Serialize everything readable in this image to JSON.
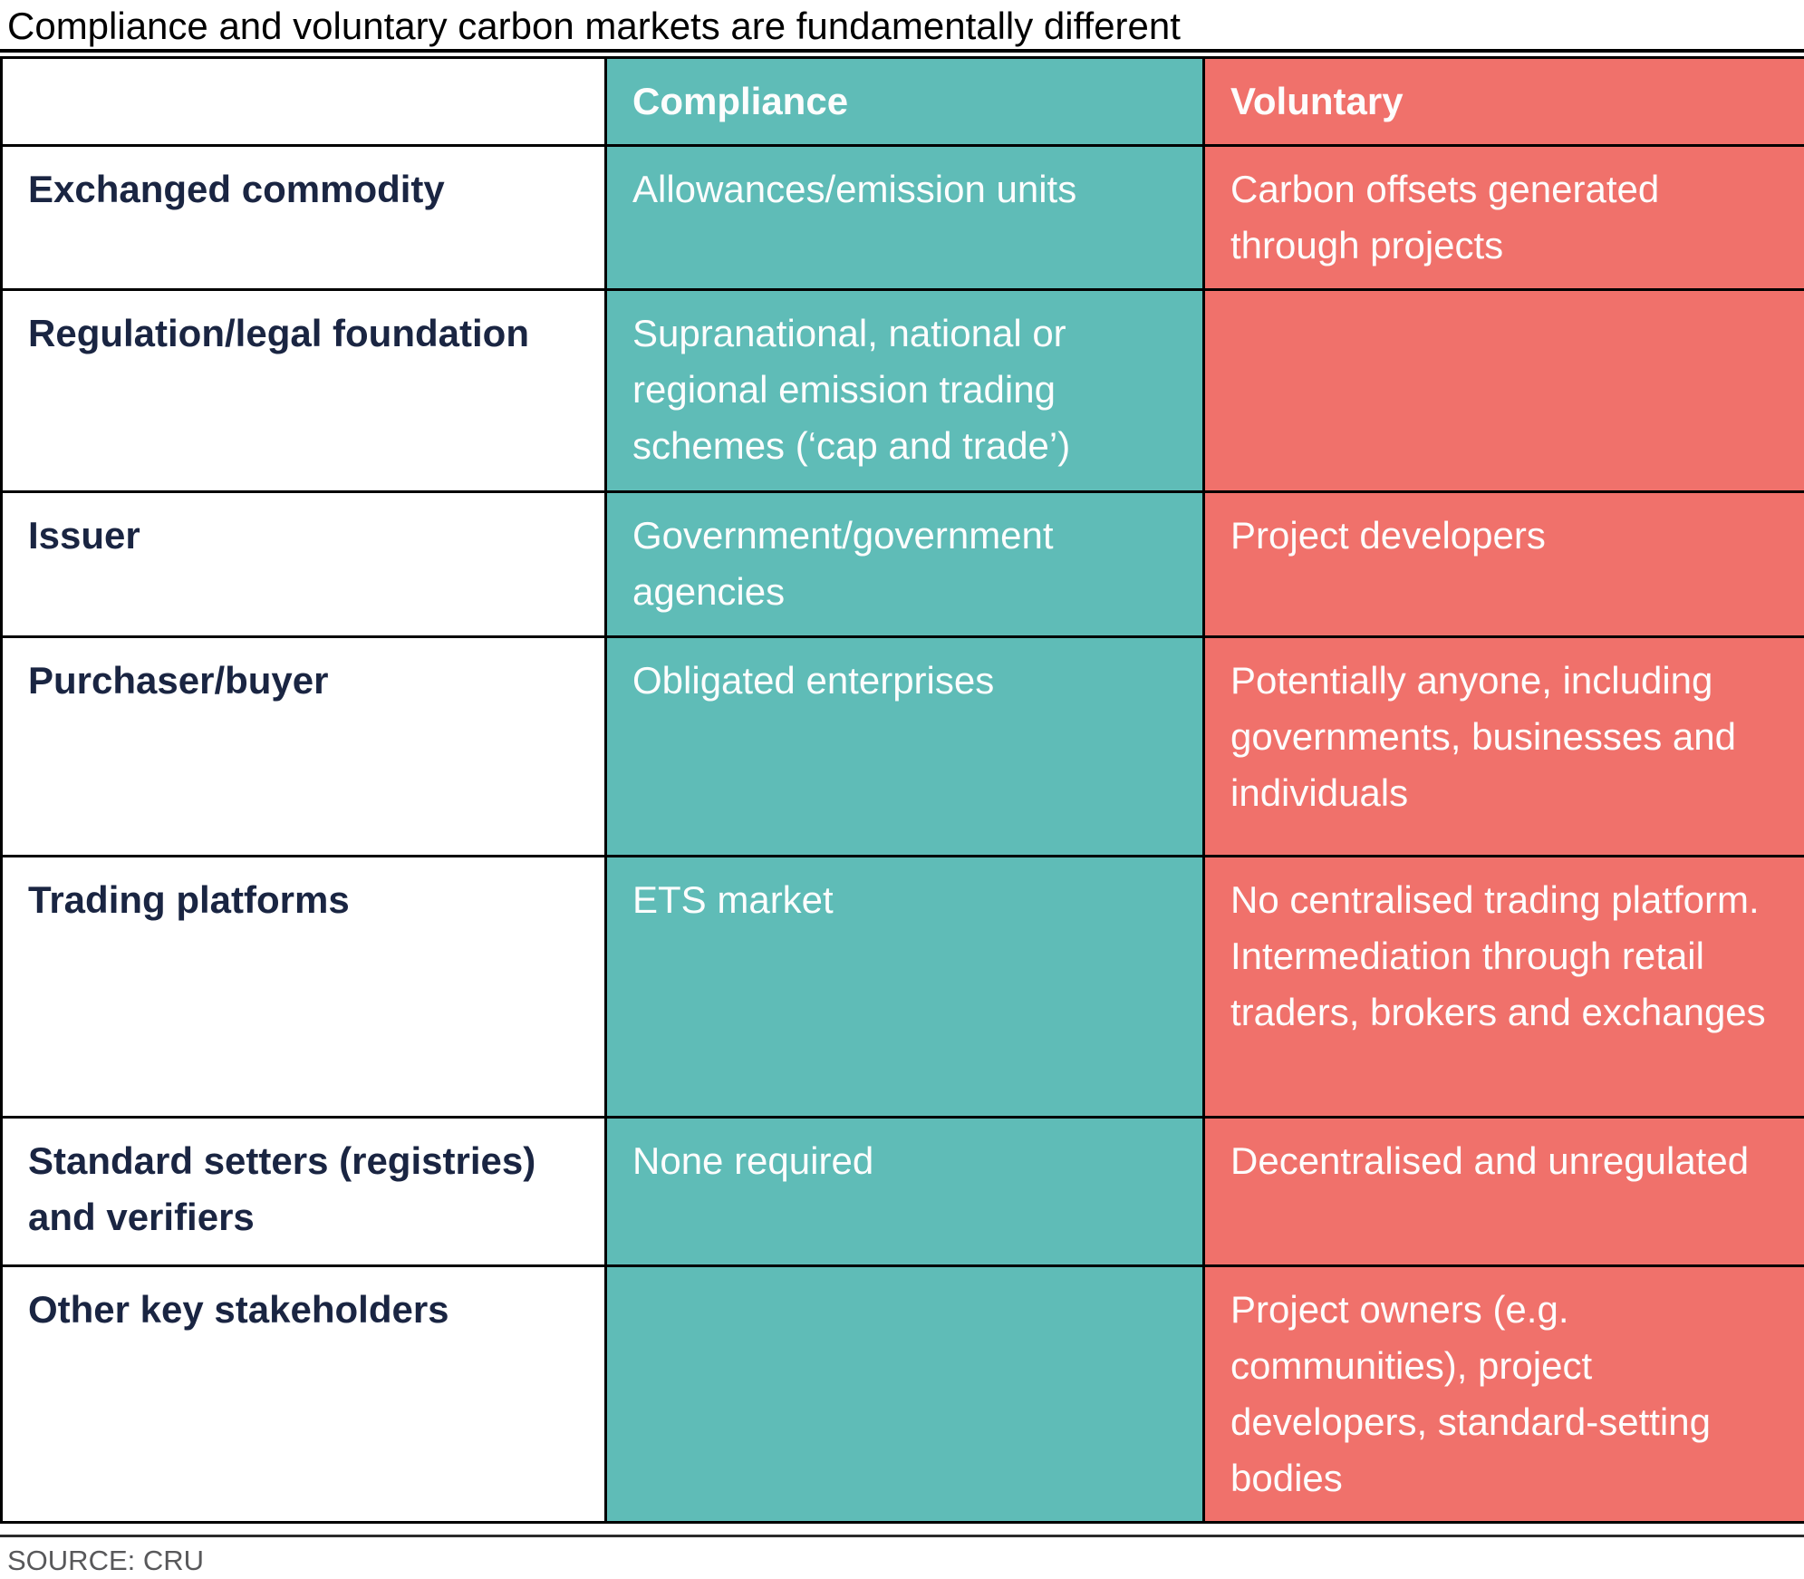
{
  "title": "Compliance and voluntary carbon markets are fundamentally different",
  "source": "SOURCE: CRU",
  "colors": {
    "compliance_teal": "#5fbcb7",
    "voluntary_coral": "#f0716b",
    "label_navy": "#1a2542",
    "cell_text": "#fdfdfd",
    "border_black": "#000000",
    "source_gray": "#58585a"
  },
  "table": {
    "columns": [
      "",
      "Compliance",
      "Voluntary"
    ],
    "rows": [
      {
        "label": "Exchanged commodity",
        "compliance": "Allowances/emission units",
        "voluntary": "Carbon offsets generated through projects"
      },
      {
        "label": "Regulation/legal foundation",
        "compliance": "Supranational, national or regional emission trading schemes (‘cap and trade’)",
        "voluntary": ""
      },
      {
        "label": "Issuer",
        "compliance": "Government/government agencies",
        "voluntary": "Project developers"
      },
      {
        "label": "Purchaser/buyer",
        "compliance": "Obligated enterprises",
        "voluntary": "Potentially anyone, including governments, businesses and individuals"
      },
      {
        "label": "Trading platforms",
        "compliance": "ETS market",
        "voluntary": "No centralised trading platform. Intermediation through retail traders, brokers and exchanges"
      },
      {
        "label": "Standard setters (registries) and verifiers",
        "compliance": "None required",
        "voluntary": "Decentralised and unregulated"
      },
      {
        "label": "Other key stakeholders",
        "compliance": "",
        "voluntary": "Project owners (e.g. communities), project developers, standard-setting bodies"
      }
    ]
  },
  "chart_data": {
    "type": "table",
    "title": "Compliance and voluntary carbon markets are fundamentally different",
    "columns": [
      "",
      "Compliance",
      "Voluntary"
    ],
    "rows": [
      [
        "Exchanged commodity",
        "Allowances/emission units",
        "Carbon offsets generated through projects"
      ],
      [
        "Regulation/legal foundation",
        "Supranational, national or regional emission trading schemes (‘cap and trade’)",
        ""
      ],
      [
        "Issuer",
        "Government/government agencies",
        "Project developers"
      ],
      [
        "Purchaser/buyer",
        "Obligated enterprises",
        "Potentially anyone, including governments, businesses and individuals"
      ],
      [
        "Trading platforms",
        "ETS market",
        "No centralised trading platform. Intermediation through retail traders, brokers and exchanges"
      ],
      [
        "Standard setters (registries) and verifiers",
        "None required",
        "Decentralised and unregulated"
      ],
      [
        "Other key stakeholders",
        "",
        "Project owners (e.g. communities), project developers, standard-setting bodies"
      ]
    ],
    "source": "SOURCE: CRU",
    "column_colors": {
      "Compliance": "#5fbcb7",
      "Voluntary": "#f0716b"
    },
    "layout": {
      "grid": true,
      "label_column_color": "#ffffff",
      "header_text_color": "#fdfdfd"
    }
  }
}
